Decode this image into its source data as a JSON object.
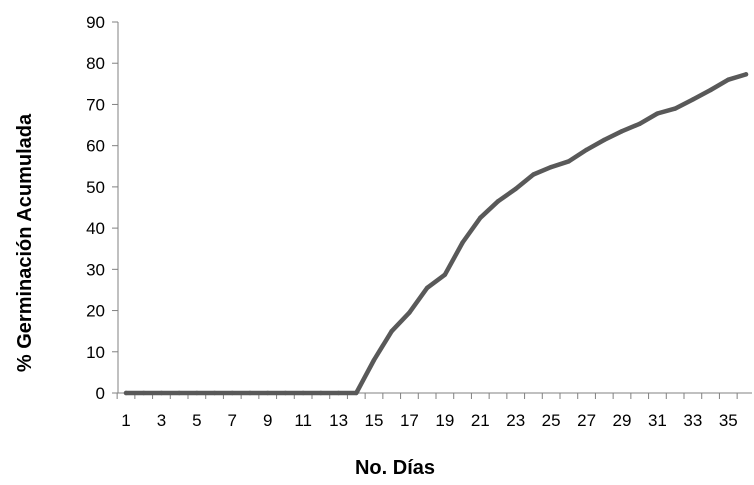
{
  "chart_data": {
    "type": "line",
    "title": "",
    "xlabel": "No. Días",
    "ylabel": "% Germinación Acumulada",
    "ylim": [
      0,
      90
    ],
    "yticks": [
      0,
      10,
      20,
      30,
      40,
      50,
      60,
      70,
      80,
      90
    ],
    "xlim": [
      1,
      36
    ],
    "xticks": [
      1,
      3,
      5,
      7,
      9,
      11,
      13,
      15,
      17,
      19,
      21,
      23,
      25,
      27,
      29,
      31,
      33,
      35
    ],
    "grid": false,
    "legend": "none",
    "line_color": "#595959",
    "series": [
      {
        "x": [
          1,
          2,
          3,
          4,
          5,
          6,
          7,
          8,
          9,
          10,
          11,
          12,
          13,
          14,
          15,
          16,
          17,
          18,
          19,
          20,
          21,
          22,
          23,
          24,
          25,
          26,
          27,
          28,
          29,
          30,
          31,
          32,
          33,
          34,
          35,
          36
        ],
        "values": [
          0,
          0,
          0,
          0,
          0,
          0,
          0,
          0,
          0,
          0,
          0,
          0,
          0,
          0,
          8,
          15,
          19.5,
          25.5,
          28.7,
          36.5,
          42.5,
          46.5,
          49.5,
          53,
          54.8,
          56.2,
          59,
          61.4,
          63.5,
          65.3,
          67.8,
          69,
          71.2,
          73.5,
          76,
          77.3
        ]
      }
    ]
  }
}
